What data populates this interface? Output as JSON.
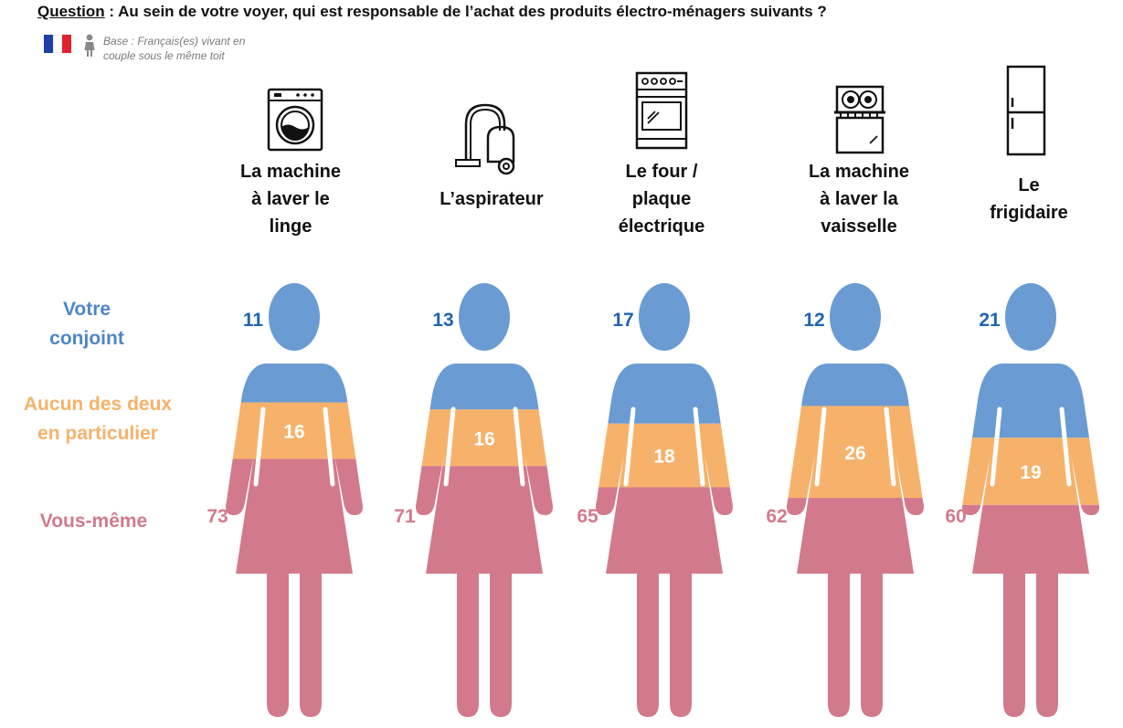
{
  "header": {
    "question_label": "Question",
    "question_text": " : Au sein de votre voyer, qui est responsable de l’achat des produits électro-ménagers suivants ?",
    "base_line1": "Base : Français(es) vivant en",
    "base_line2": "couple sous le même toit"
  },
  "row_labels": {
    "conjoint": [
      "Votre",
      "conjoint"
    ],
    "aucun": [
      "Aucun des deux",
      "en particulier"
    ],
    "vous": [
      "Vous-même"
    ]
  },
  "colors": {
    "conjoint": "#6a9bd3",
    "aucun": "#f6b26b",
    "vous": "#d27a8c",
    "conjoint_text": "#1f64b0",
    "vous_text": "#d27a8c",
    "aucun_text": "#ffffff",
    "flag_blue": "#1d3fa8",
    "flag_white": "#ffffff",
    "flag_red": "#e0212e"
  },
  "icons": [
    "washing-machine-icon",
    "vacuum-cleaner-icon",
    "oven-icon",
    "dishwasher-icon",
    "fridge-icon"
  ],
  "chart_data": {
    "type": "bar",
    "stacked": true,
    "categories": [
      [
        "La machine",
        "à laver le",
        "linge"
      ],
      [
        "L’aspirateur"
      ],
      [
        "Le four /",
        "plaque",
        "électrique"
      ],
      [
        "La machine",
        "à laver la",
        "vaisselle"
      ],
      [
        "Le",
        "frigidaire"
      ]
    ],
    "series": [
      {
        "name": "Votre conjoint",
        "values": [
          11,
          13,
          17,
          12,
          21
        ]
      },
      {
        "name": "Aucun des deux en particulier",
        "values": [
          16,
          16,
          18,
          26,
          19
        ]
      },
      {
        "name": "Vous-même",
        "values": [
          73,
          71,
          65,
          62,
          60
        ]
      }
    ],
    "ylim": [
      0,
      100
    ]
  }
}
